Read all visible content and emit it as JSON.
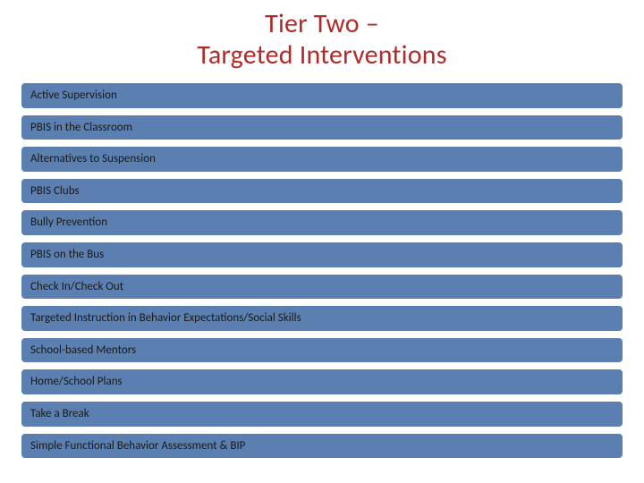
{
  "title": {
    "line1": "Tier Two –",
    "line2": "Targeted Interventions",
    "color": "#b02b28",
    "fontsize": 30
  },
  "bars": {
    "fill_color": "#5a7fb0",
    "border_color": "#ffffff",
    "border_radius": 6,
    "text_color": "#1a1a1a",
    "fontsize": 13,
    "items": [
      "Active Supervision",
      "PBIS in the Classroom",
      "Alternatives to Suspension",
      "PBIS Clubs",
      "Bully Prevention",
      "PBIS on the  Bus",
      "Check In/Check Out",
      "Targeted Instruction in Behavior Expectations/Social Skills",
      "School-based Mentors",
      "Home/School Plans",
      "Take a Break",
      "Simple Functional Behavior Assessment & BIP"
    ]
  },
  "background_color": "#ffffff"
}
